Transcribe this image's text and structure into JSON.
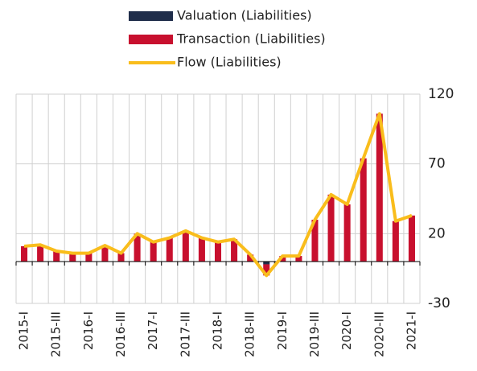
{
  "chart_data": {
    "type": "bar",
    "categories": [
      "2015-I",
      null,
      "2015-III",
      null,
      "2016-I",
      null,
      "2016-III",
      null,
      "2017-I",
      null,
      "2017-III",
      null,
      "2018-I",
      null,
      "2018-III",
      null,
      "2019-I",
      null,
      "2019-III",
      null,
      "2020-I",
      null,
      "2020-III",
      null,
      "2021-I"
    ],
    "series": [
      {
        "name": "Valuation (Liabilities)",
        "color": "#1f2d4a",
        "values": [
          0,
          0,
          0,
          0,
          0,
          0,
          0,
          0,
          0,
          0,
          0,
          0,
          0,
          0,
          0,
          -2,
          0,
          0,
          0,
          0,
          0,
          0,
          0,
          0,
          0
        ]
      },
      {
        "name": "Transaction (Liabilities)",
        "color": "#c8102e",
        "values": [
          11,
          12,
          7.5,
          6,
          6,
          11.5,
          6,
          20,
          14,
          17,
          22,
          17,
          14,
          16,
          5,
          -8,
          4,
          4,
          30,
          48,
          41,
          74,
          106,
          29,
          33
        ]
      },
      {
        "name": "Flow (Liabilities)",
        "color": "#f9bd1c",
        "type": "line",
        "values": [
          11,
          12,
          7.5,
          6,
          6,
          11.5,
          6,
          20,
          14,
          17,
          22,
          17,
          14,
          16,
          5,
          -10,
          4,
          4,
          30,
          48,
          41,
          74,
          106,
          29,
          33
        ]
      }
    ],
    "ylim": [
      -30,
      120
    ],
    "yticks": [
      120,
      70,
      20,
      -30
    ],
    "grid": true
  }
}
